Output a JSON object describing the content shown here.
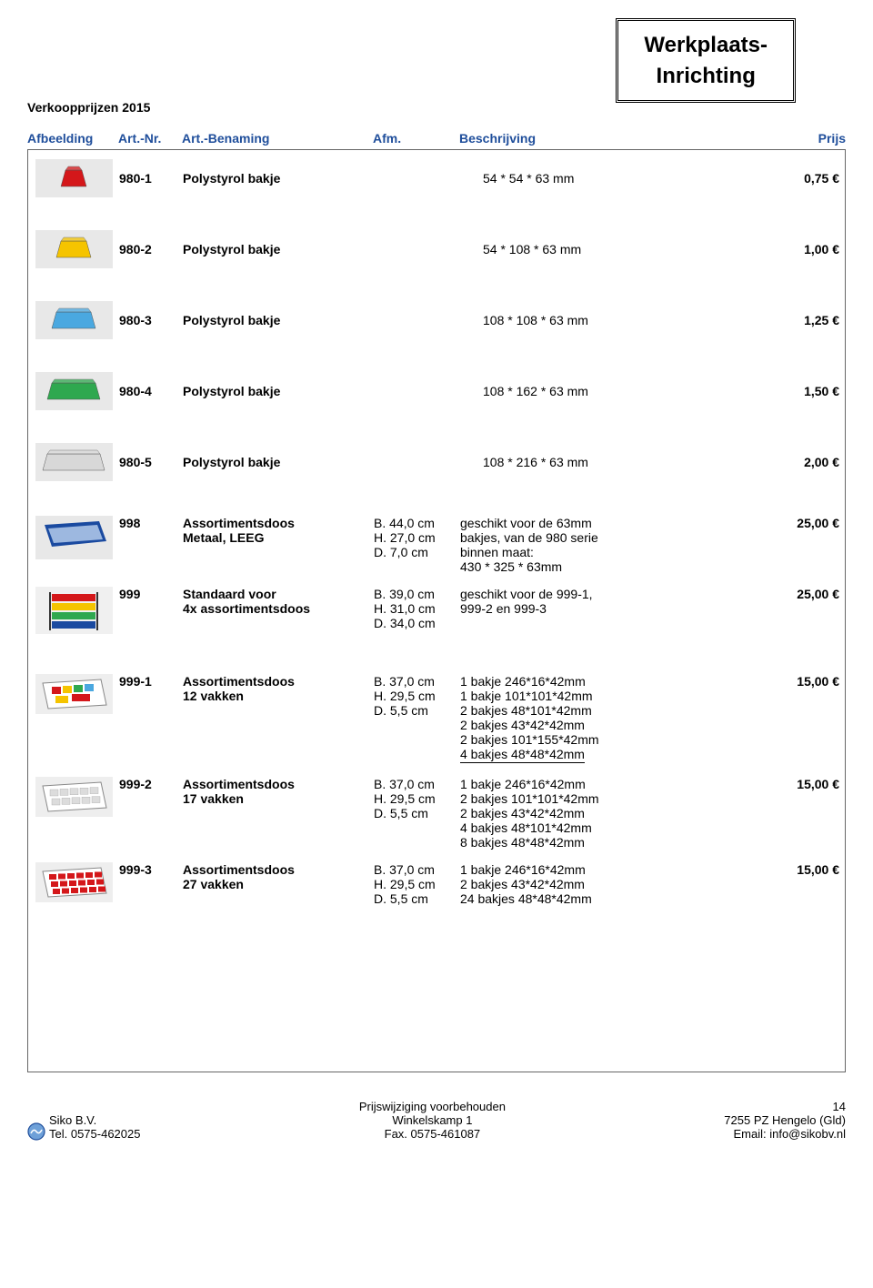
{
  "header": {
    "subtitle": "Verkoopprijzen 2015",
    "title_line1": "Werkplaats-",
    "title_line2": "Inrichting"
  },
  "columns": {
    "img": "Afbeelding",
    "nr": "Art.-Nr.",
    "name": "Art.-Benaming",
    "afm": "Afm.",
    "desc": "Beschrijving",
    "price": "Prijs"
  },
  "simple_rows": [
    {
      "nr": "980-1",
      "name": "Polystyrol bakje",
      "afm": "54 * 54 * 63 mm",
      "price": "0,75 €",
      "color": "#d4171a"
    },
    {
      "nr": "980-2",
      "name": "Polystyrol bakje",
      "afm": "54 * 108 * 63 mm",
      "price": "1,00 €",
      "color": "#f5c400"
    },
    {
      "nr": "980-3",
      "name": "Polystyrol bakje",
      "afm": "108 * 108 * 63 mm",
      "price": "1,25 €",
      "color": "#4aa8e0"
    },
    {
      "nr": "980-4",
      "name": "Polystyrol bakje",
      "afm": "108 * 162 * 63 mm",
      "price": "1,50 €",
      "color": "#2fa84f"
    },
    {
      "nr": "980-5",
      "name": "Polystyrol bakje",
      "afm": "108 * 216 * 63 mm",
      "price": "2,00 €",
      "color": "#d8d8d8"
    }
  ],
  "detail_rows": [
    {
      "nr": "998",
      "name_l1": "Assortimentsdoos",
      "name_l2": "Metaal, LEEG",
      "afm": "B.  44,0 cm\nH.  27,0 cm\nD.   7,0 cm",
      "desc": "geschikt voor de 63mm\nbakjes, van de 980 serie\nbinnen maat:\n430 * 325 * 63mm",
      "price": "25,00 €",
      "svg": "metalbox"
    },
    {
      "nr": "999",
      "name_l1": "Standaard voor",
      "name_l2": "4x assortimentsdoos",
      "afm": "B.  39,0 cm\nH.  31,0 cm\nD.  34,0 cm",
      "desc": "geschikt voor de 999-1,\n999-2 en 999-3",
      "price": "25,00 €",
      "svg": "rack"
    },
    {
      "nr": "999-1",
      "name_l1": "Assortimentsdoos",
      "name_l2": "12 vakken",
      "afm": "B.  37,0 cm\nH.  29,5 cm\nD.   5,5 cm",
      "desc": "1 bakje   246*16*42mm\n1 bakje   101*101*42mm\n2 bakjes 48*101*42mm\n2 bakjes 43*42*42mm\n2 bakjes 101*155*42mm",
      "desc_underline": "4 bakjes 48*48*42mm",
      "price": "15,00 €",
      "svg": "assort_multi"
    },
    {
      "nr": "999-2",
      "name_l1": "Assortimentsdoos",
      "name_l2": "17 vakken",
      "afm": "B.  37,0 cm\nH.  29,5 cm\nD.   5,5 cm",
      "desc": "1 bakje   246*16*42mm\n2 bakjes 101*101*42mm\n2 bakjes 43*42*42mm\n4 bakjes 48*101*42mm\n8 bakjes 48*48*42mm",
      "price": "15,00 €",
      "svg": "assort_clear"
    },
    {
      "nr": "999-3",
      "name_l1": "Assortimentsdoos",
      "name_l2": "27 vakken",
      "afm": "B.  37,0 cm\nH.  29,5 cm\nD.   5,5 cm",
      "desc": "  1 bakje   246*16*42mm\n  2 bakjes 43*42*42mm\n24 bakjes 48*48*42mm",
      "price": "15,00 €",
      "svg": "assort_red"
    }
  ],
  "footer": {
    "left_l1": "Siko B.V.",
    "left_l2": "Tel. 0575-462025",
    "mid_l1": "Prijswijziging voorbehouden",
    "mid_l2": "Winkelskamp 1",
    "mid_l3": "Fax. 0575-461087",
    "right_page": "14",
    "right_l2": "7255 PZ Hengelo (Gld)",
    "right_l3": "Email: info@sikobv.nl"
  }
}
